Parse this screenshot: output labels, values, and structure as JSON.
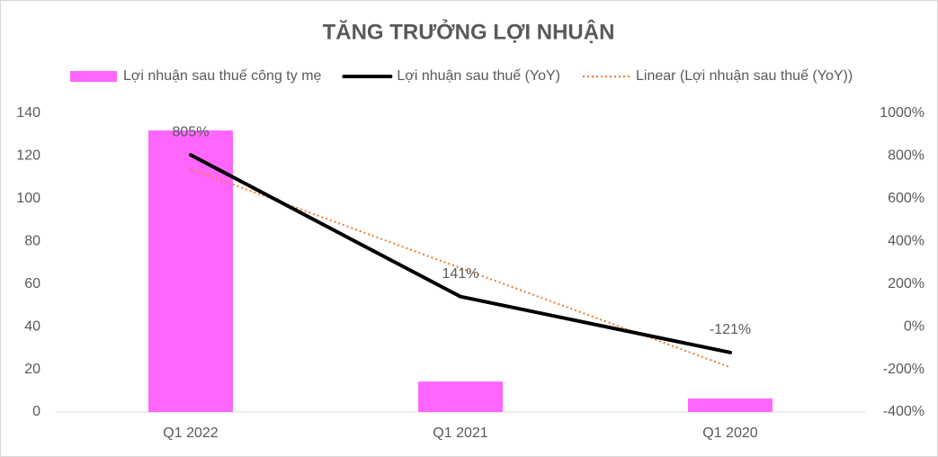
{
  "chart_data": {
    "type": "combo",
    "title": "TĂNG TRƯỞNG LỢI NHUẬN",
    "categories": [
      "Q1 2022",
      "Q1 2021",
      "Q1 2020"
    ],
    "legend": "top",
    "grid": false,
    "series": [
      {
        "name": "Lợi nhuận sau thuế công ty mẹ",
        "type": "bar",
        "color": "#ff66ff",
        "values": [
          132,
          14.3,
          6.3
        ]
      },
      {
        "name": "Lợi nhuận sau thuế (YoY)",
        "type": "line",
        "color": "#000000",
        "axis": "y2",
        "values": [
          805,
          141,
          -121
        ],
        "value_labels": [
          "805%",
          "141%",
          "-121%"
        ]
      },
      {
        "name": "Linear (Lợi nhuận sau thuế (YoY))",
        "type": "trend",
        "color": "#ed7d31",
        "axis": "y2",
        "values": [
          740,
          275,
          -190
        ]
      }
    ],
    "ylim": [
      0,
      140
    ],
    "yticks": [
      0,
      20,
      40,
      60,
      80,
      100,
      120,
      140
    ],
    "y2lim": [
      -400,
      1000
    ],
    "y2ticks": [
      {
        "value": -400,
        "label": "-400%"
      },
      {
        "value": -200,
        "label": "-200%"
      },
      {
        "value": 0,
        "label": "0%"
      },
      {
        "value": 200,
        "label": "200%"
      },
      {
        "value": 400,
        "label": "400%"
      },
      {
        "value": 600,
        "label": "600%"
      },
      {
        "value": 800,
        "label": "800%"
      },
      {
        "value": 1000,
        "label": "1000%"
      }
    ]
  }
}
